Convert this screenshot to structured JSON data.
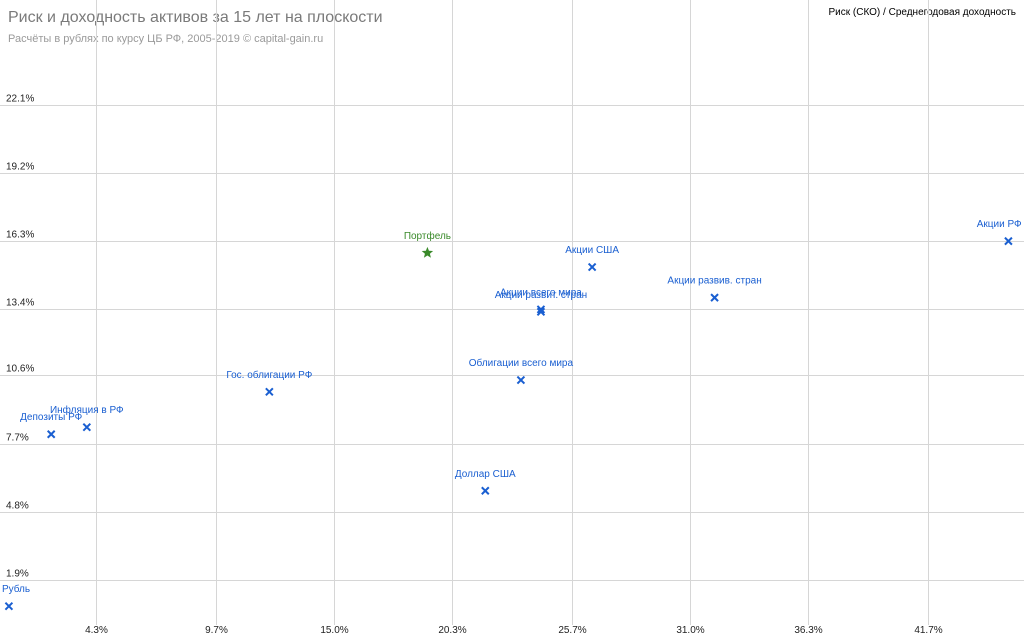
{
  "chart_data": {
    "type": "scatter",
    "title": "Риск и доходность активов за 15 лет на плоскости",
    "subtitle": "Расчёты в рублях по курсу ЦБ РФ, 2005-2019 © capital-gain.ru",
    "legend_text": "Риск (СКО) / Среднегодовая доходность",
    "legend_position": "top-right",
    "grid": true,
    "xlim": [
      0,
      46
    ],
    "ylim": [
      0,
      24.5
    ],
    "x_ticks": [
      4.3,
      9.7,
      15.0,
      20.3,
      25.7,
      31.0,
      36.3,
      41.7
    ],
    "x_tick_labels": [
      "4.3%",
      "9.7%",
      "15.0%",
      "20.3%",
      "25.7%",
      "31.0%",
      "36.3%",
      "41.7%"
    ],
    "y_ticks": [
      1.9,
      4.8,
      7.7,
      10.6,
      13.4,
      16.3,
      19.2,
      22.1
    ],
    "y_tick_labels": [
      "1.9%",
      "4.8%",
      "7.7%",
      "10.6%",
      "13.4%",
      "16.3%",
      "19.2%",
      "22.1%"
    ],
    "colors": {
      "asset": "#1a5fd1",
      "portfolio": "#3a8a2a",
      "grid": "#d6d6d6"
    },
    "points": [
      {
        "label": "Рубль",
        "x": 0.4,
        "y": 0.8,
        "marker": "cross"
      },
      {
        "label": "Депозиты РФ",
        "x": 2.3,
        "y": 8.1,
        "marker": "cross"
      },
      {
        "label": "Инфляция в РФ",
        "x": 3.9,
        "y": 8.4,
        "marker": "cross"
      },
      {
        "label": "Гос. облигации РФ",
        "x": 12.1,
        "y": 9.9,
        "marker": "cross"
      },
      {
        "label": "Портфель",
        "x": 19.2,
        "y": 15.8,
        "marker": "star"
      },
      {
        "label": "Доллар США",
        "x": 21.8,
        "y": 5.7,
        "marker": "cross"
      },
      {
        "label": "Облигации всего мира",
        "x": 23.4,
        "y": 10.4,
        "marker": "cross"
      },
      {
        "label": "Акции всего мира",
        "x": 24.3,
        "y": 13.4,
        "marker": "cross"
      },
      {
        "label": "Акции развит. стран",
        "x": 24.3,
        "y": 13.3,
        "marker": "cross"
      },
      {
        "label": "Акции США",
        "x": 26.6,
        "y": 15.2,
        "marker": "cross"
      },
      {
        "label": "Акции развив. стран",
        "x": 32.1,
        "y": 13.9,
        "marker": "cross"
      },
      {
        "label": "Акции РФ",
        "x": 45.3,
        "y": 16.3,
        "marker": "cross"
      }
    ]
  }
}
